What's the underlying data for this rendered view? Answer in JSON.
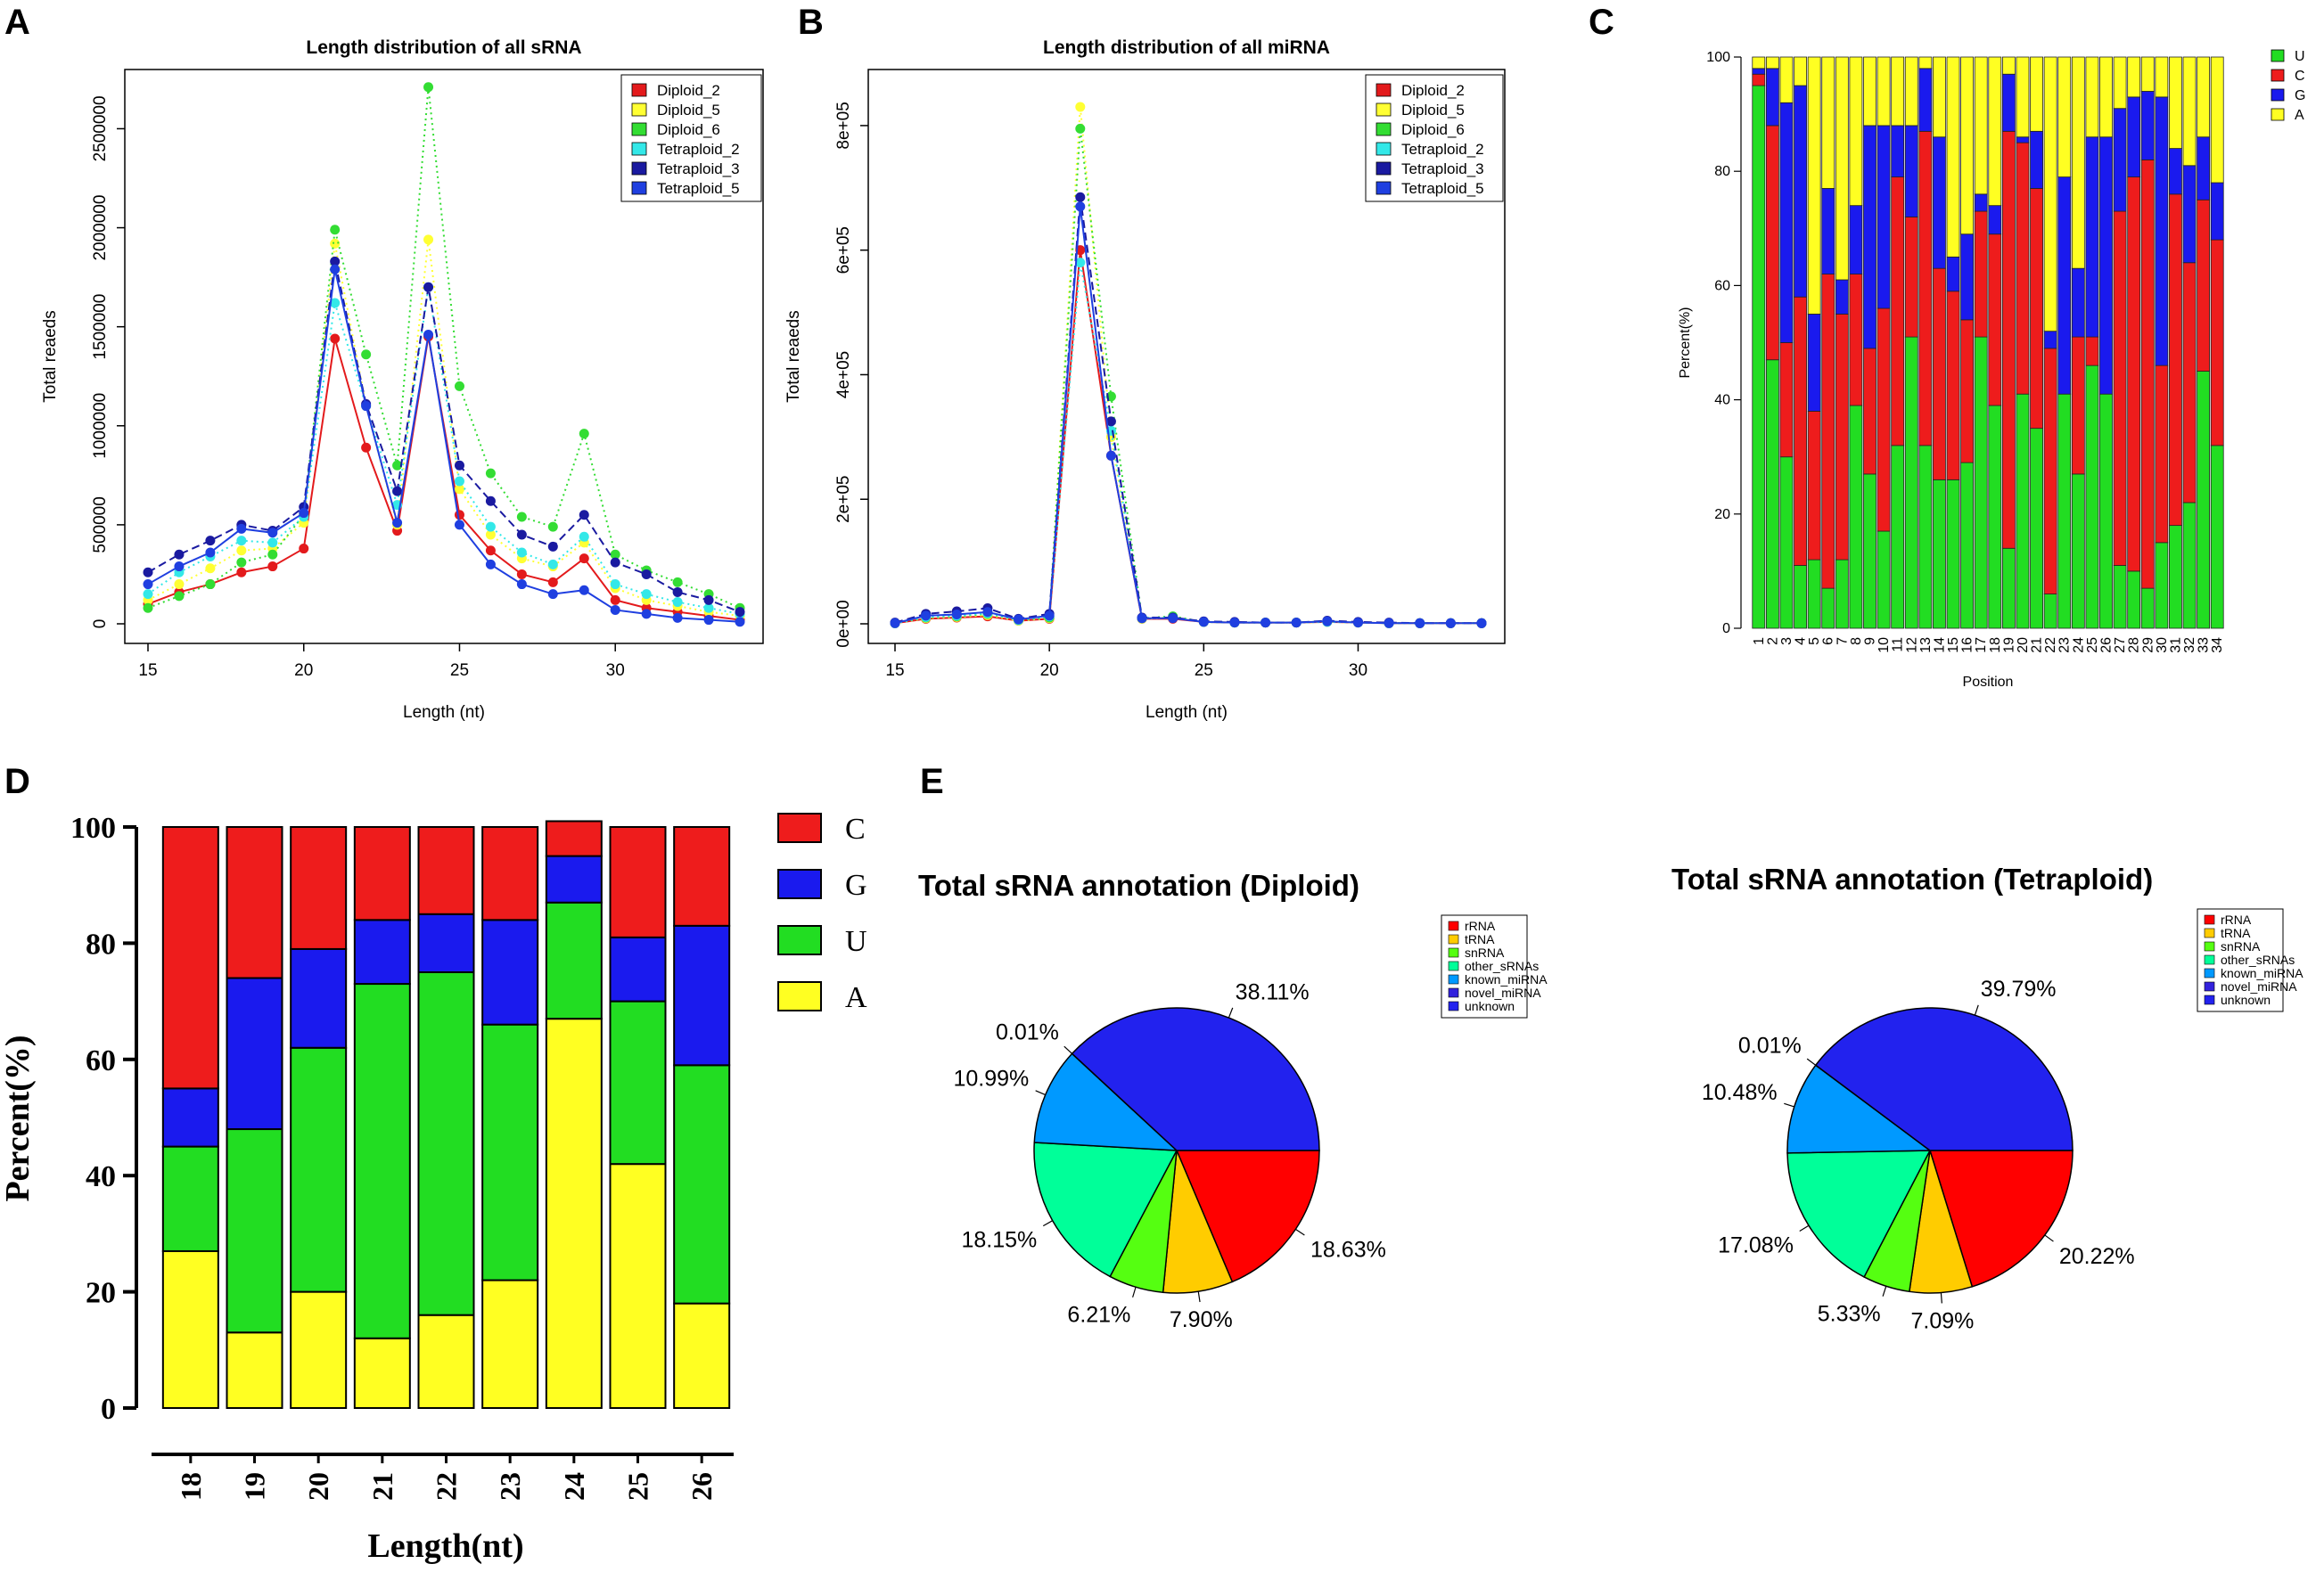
{
  "panels": {
    "a": "A",
    "b": "B",
    "c": "C",
    "d": "D",
    "e": "E"
  },
  "colors": {
    "Diploid_2": "#e31a1c",
    "Diploid_5": "#ffff33",
    "Diploid_6": "#33dd33",
    "Tetraploid_2": "#33e8e8",
    "Tetraploid_3": "#1a1aa0",
    "Tetraploid_5": "#1f3fe0",
    "U": "#22dd22",
    "C": "#ee1c1c",
    "G": "#1a1aee",
    "A": "#ffff22",
    "rRNA": "#ff0000",
    "tRNA": "#ffcc00",
    "snRNA": "#55ff11",
    "other_sRNAs": "#00ff99",
    "known_miRNA": "#0099ff",
    "novel_miRNA": "#3322dd",
    "unknown": "#2222ee"
  },
  "chart_data": [
    {
      "type": "line",
      "id": "A",
      "title": "Length distribution of all sRNA",
      "xlabel": "Length (nt)",
      "ylabel": "Total reaeds",
      "xlim": [
        15,
        34
      ],
      "ylim": [
        0,
        2700000
      ],
      "x_ticks": [
        "15",
        "20",
        "25",
        "30"
      ],
      "y_ticks": [
        "0",
        "500000",
        "1000000",
        "1500000",
        "2000000",
        "2500000"
      ],
      "x": [
        15,
        16,
        17,
        18,
        19,
        20,
        21,
        22,
        23,
        24,
        25,
        26,
        27,
        28,
        29,
        30,
        31,
        32,
        33,
        34
      ],
      "series": [
        {
          "name": "Diploid_2",
          "style": "solid",
          "values": [
            100000,
            160000,
            200000,
            260000,
            290000,
            380000,
            1440000,
            890000,
            470000,
            1450000,
            550000,
            370000,
            250000,
            210000,
            330000,
            120000,
            80000,
            60000,
            40000,
            20000
          ]
        },
        {
          "name": "Diploid_5",
          "style": "dotted",
          "values": [
            120000,
            200000,
            280000,
            370000,
            380000,
            510000,
            1920000,
            1100000,
            500000,
            1940000,
            680000,
            450000,
            330000,
            290000,
            410000,
            180000,
            120000,
            90000,
            60000,
            40000
          ]
        },
        {
          "name": "Diploid_6",
          "style": "dotted",
          "values": [
            80000,
            140000,
            200000,
            310000,
            350000,
            550000,
            1990000,
            1360000,
            800000,
            2710000,
            1200000,
            760000,
            540000,
            490000,
            960000,
            350000,
            270000,
            210000,
            150000,
            80000
          ]
        },
        {
          "name": "Tetraploid_2",
          "style": "dotted",
          "values": [
            150000,
            260000,
            340000,
            420000,
            410000,
            540000,
            1620000,
            1100000,
            600000,
            1700000,
            720000,
            490000,
            360000,
            300000,
            440000,
            200000,
            150000,
            110000,
            80000,
            50000
          ]
        },
        {
          "name": "Tetraploid_3",
          "style": "dashed",
          "values": [
            260000,
            350000,
            420000,
            500000,
            470000,
            590000,
            1830000,
            1110000,
            670000,
            1700000,
            800000,
            620000,
            450000,
            390000,
            550000,
            310000,
            250000,
            160000,
            120000,
            60000
          ]
        },
        {
          "name": "Tetraploid_5",
          "style": "solid",
          "values": [
            200000,
            290000,
            360000,
            480000,
            460000,
            560000,
            1790000,
            1100000,
            510000,
            1460000,
            500000,
            300000,
            200000,
            150000,
            170000,
            70000,
            50000,
            30000,
            20000,
            10000
          ]
        }
      ]
    },
    {
      "type": "line",
      "id": "B",
      "title": "Length distribution of all miRNA",
      "xlabel": "Length (nt)",
      "ylabel": "Total reaeds",
      "xlim": [
        15,
        34
      ],
      "ylim": [
        0,
        880000
      ],
      "x_ticks": [
        "15",
        "20",
        "25",
        "30"
      ],
      "y_ticks": [
        "0e+00",
        "2e+05",
        "4e+05",
        "6e+05",
        "8e+05"
      ],
      "x": [
        15,
        16,
        17,
        18,
        19,
        20,
        21,
        22,
        23,
        24,
        25,
        26,
        27,
        28,
        29,
        30,
        31,
        32,
        33,
        34
      ],
      "series": [
        {
          "name": "Diploid_2",
          "style": "solid",
          "values": [
            1000,
            8000,
            10000,
            12000,
            5000,
            8000,
            600000,
            270000,
            8000,
            8000,
            3000,
            2000,
            2000,
            2000,
            3000,
            2000,
            1000,
            1000,
            1000,
            1000
          ]
        },
        {
          "name": "Diploid_5",
          "style": "dotted",
          "values": [
            1000,
            9000,
            11000,
            14000,
            5000,
            9000,
            830000,
            300000,
            8000,
            10000,
            3000,
            2000,
            2000,
            2000,
            3000,
            2000,
            1000,
            1000,
            1000,
            1000
          ]
        },
        {
          "name": "Diploid_6",
          "style": "dotted",
          "values": [
            1000,
            10000,
            12000,
            16000,
            6000,
            10000,
            795000,
            365000,
            9000,
            12000,
            3000,
            2000,
            2000,
            2000,
            4000,
            2000,
            1000,
            1000,
            1000,
            1000
          ]
        },
        {
          "name": "Tetraploid_2",
          "style": "dotted",
          "values": [
            1000,
            11000,
            13000,
            17000,
            6000,
            12000,
            580000,
            310000,
            9000,
            10000,
            3000,
            2000,
            2000,
            2000,
            3000,
            2000,
            1000,
            1000,
            1000,
            1000
          ]
        },
        {
          "name": "Tetraploid_3",
          "style": "dashed",
          "values": [
            2000,
            16000,
            20000,
            25000,
            8000,
            16000,
            685000,
            325000,
            10000,
            10000,
            4000,
            3000,
            2000,
            2000,
            5000,
            3000,
            2000,
            1000,
            1000,
            1000
          ]
        },
        {
          "name": "Tetraploid_5",
          "style": "solid",
          "values": [
            1000,
            13000,
            15000,
            19000,
            7000,
            13000,
            670000,
            270000,
            9000,
            9000,
            3000,
            2000,
            2000,
            2000,
            4000,
            2000,
            1000,
            1000,
            1000,
            1000
          ]
        }
      ]
    },
    {
      "type": "bar",
      "stacked": true,
      "id": "C",
      "xlabel": "Position",
      "ylabel": "Percent(%)",
      "ylim": [
        0,
        100
      ],
      "y_ticks": [
        "0",
        "20",
        "40",
        "60",
        "80",
        "100"
      ],
      "categories": [
        "1",
        "2",
        "3",
        "4",
        "5",
        "6",
        "7",
        "8",
        "9",
        "10",
        "11",
        "12",
        "13",
        "14",
        "15",
        "16",
        "17",
        "18",
        "19",
        "20",
        "21",
        "22",
        "23",
        "24",
        "25",
        "26",
        "27",
        "28",
        "29",
        "30",
        "31",
        "32",
        "33",
        "34"
      ],
      "series": [
        {
          "name": "U",
          "values": [
            95,
            47,
            30,
            11,
            12,
            7,
            12,
            39,
            27,
            17,
            32,
            51,
            32,
            26,
            26,
            29,
            51,
            39,
            14,
            41,
            35,
            6,
            41,
            27,
            46,
            41,
            11,
            10,
            7,
            15,
            18,
            22,
            45,
            32
          ]
        },
        {
          "name": "C",
          "values": [
            2,
            41,
            20,
            47,
            26,
            55,
            43,
            23,
            22,
            39,
            47,
            21,
            55,
            37,
            33,
            25,
            22,
            30,
            73,
            44,
            42,
            43,
            0,
            24,
            5,
            0,
            62,
            69,
            75,
            31,
            58,
            42,
            30,
            36
          ]
        },
        {
          "name": "G",
          "values": [
            1,
            10,
            42,
            37,
            17,
            15,
            6,
            12,
            39,
            32,
            9,
            16,
            11,
            23,
            6,
            15,
            3,
            5,
            10,
            1,
            10,
            3,
            38,
            12,
            35,
            45,
            18,
            14,
            12,
            47,
            8,
            17,
            11,
            10
          ]
        },
        {
          "name": "A",
          "values": [
            2,
            2,
            8,
            5,
            45,
            23,
            39,
            26,
            12,
            12,
            12,
            12,
            2,
            14,
            35,
            31,
            24,
            26,
            3,
            14,
            13,
            48,
            21,
            37,
            14,
            14,
            9,
            7,
            6,
            7,
            16,
            19,
            14,
            22
          ]
        }
      ],
      "legend": [
        "U",
        "C",
        "G",
        "A"
      ]
    },
    {
      "type": "bar",
      "stacked": true,
      "id": "D",
      "xlabel": "Length(nt)",
      "ylabel": "Percent(%)",
      "ylim": [
        0,
        100
      ],
      "y_ticks": [
        "0",
        "20",
        "40",
        "60",
        "80",
        "100"
      ],
      "categories": [
        "18",
        "19",
        "20",
        "21",
        "22",
        "23",
        "24",
        "25",
        "26"
      ],
      "series": [
        {
          "name": "A",
          "values": [
            27,
            13,
            20,
            12,
            16,
            22,
            67,
            42,
            18
          ]
        },
        {
          "name": "U",
          "values": [
            18,
            35,
            42,
            61,
            59,
            44,
            20,
            28,
            41
          ]
        },
        {
          "name": "G",
          "values": [
            10,
            26,
            17,
            11,
            10,
            18,
            8,
            11,
            24
          ]
        },
        {
          "name": "C",
          "values": [
            45,
            26,
            21,
            16,
            15,
            16,
            6,
            19,
            17
          ]
        }
      ],
      "legend": [
        "C",
        "G",
        "U",
        "A"
      ]
    },
    {
      "type": "pie",
      "id": "E1",
      "title": "Total sRNA annotation (Diploid)",
      "categories": [
        "rRNA",
        "tRNA",
        "snRNA",
        "other_sRNAs",
        "known_miRNA",
        "novel_miRNA",
        "unknown"
      ],
      "values": [
        18.63,
        7.9,
        6.21,
        18.15,
        10.99,
        0.01,
        38.11
      ],
      "labels": [
        "18.63%",
        "7.90%",
        "6.21%",
        "18.15%",
        "10.99%",
        "0.01%",
        "38.11%"
      ]
    },
    {
      "type": "pie",
      "id": "E2",
      "title": "Total sRNA annotation (Tetraploid)",
      "categories": [
        "rRNA",
        "tRNA",
        "snRNA",
        "other_sRNAs",
        "known_miRNA",
        "novel_miRNA",
        "unknown"
      ],
      "values": [
        20.22,
        7.09,
        5.33,
        17.08,
        10.48,
        0.01,
        39.79
      ],
      "labels": [
        "20.22%",
        "7.09%",
        "5.33%",
        "17.08%",
        "10.48%",
        "0.01%",
        "39.79%"
      ]
    }
  ]
}
